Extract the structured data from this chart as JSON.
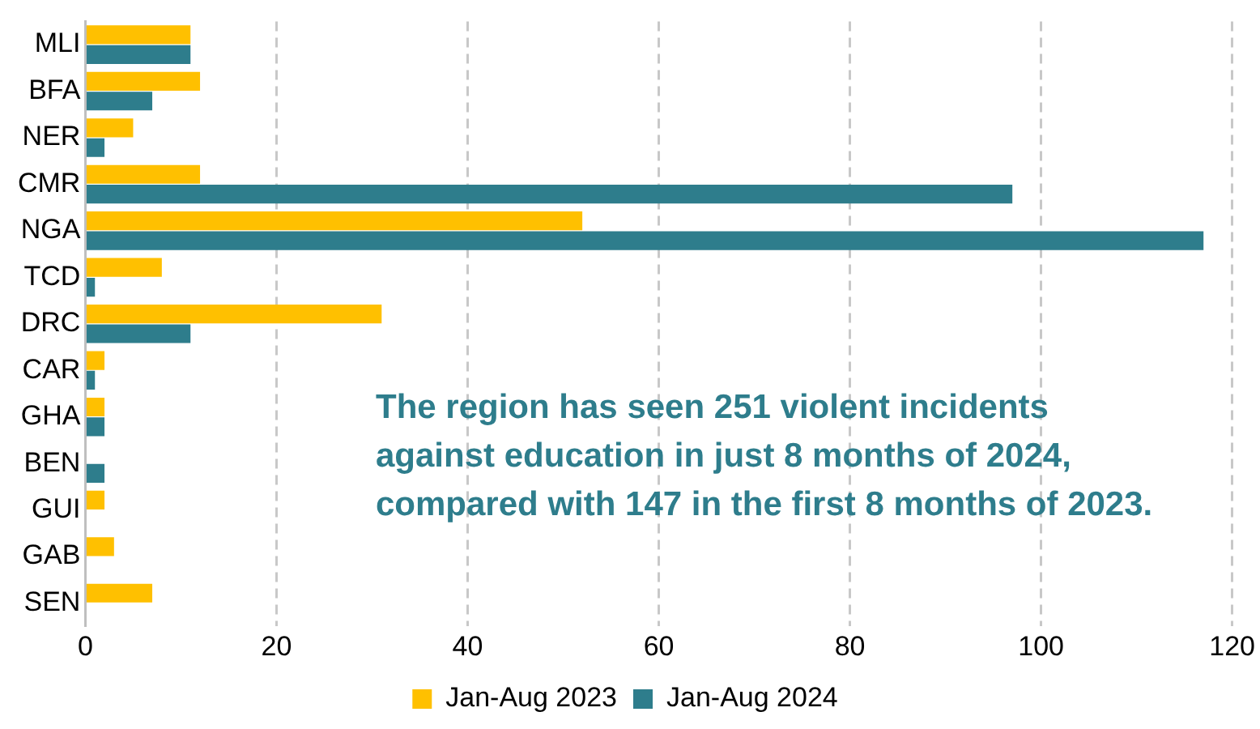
{
  "chart_data": {
    "type": "bar",
    "orientation": "horizontal",
    "categories": [
      "MLI",
      "BFA",
      "NER",
      "CMR",
      "NGA",
      "TCD",
      "DRC",
      "CAR",
      "GHA",
      "BEN",
      "GUI",
      "GAB",
      "SEN"
    ],
    "series": [
      {
        "name": "Jan-Aug 2023",
        "color": "#ffc000",
        "values": [
          11,
          12,
          5,
          12,
          52,
          8,
          31,
          2,
          2,
          0,
          2,
          3,
          7
        ]
      },
      {
        "name": "Jan-Aug 2024",
        "color": "#2e7d8c",
        "values": [
          11,
          7,
          2,
          97,
          117,
          1,
          11,
          1,
          2,
          2,
          0,
          0,
          0
        ]
      }
    ],
    "xlim": [
      0,
      120
    ],
    "xticks": [
      0,
      20,
      40,
      60,
      80,
      100,
      120
    ],
    "grid": "x",
    "legend": "bottom",
    "annotations": [
      "The region has seen 251 violent incidents",
      "against education in just 8 months of 2024,",
      "compared with 147 in the first 8 months of 2023."
    ]
  }
}
